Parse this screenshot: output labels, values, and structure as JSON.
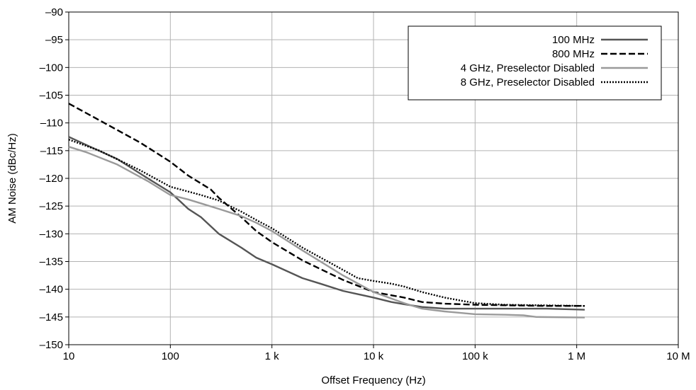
{
  "chart_data": {
    "type": "line",
    "title": "",
    "xlabel": "Offset Frequency (Hz)",
    "ylabel": "AM Noise (dBc/Hz)",
    "x_scale": "log",
    "xlim": [
      10,
      10000000
    ],
    "ylim": [
      -150,
      -90
    ],
    "grid": true,
    "legend_position": "top-right",
    "x_ticks": [
      {
        "value": 10,
        "label": "10"
      },
      {
        "value": 100,
        "label": "100"
      },
      {
        "value": 1000,
        "label": "1 k"
      },
      {
        "value": 10000,
        "label": "10 k"
      },
      {
        "value": 100000,
        "label": "100 k"
      },
      {
        "value": 1000000,
        "label": "1 M"
      },
      {
        "value": 10000000,
        "label": "10 M"
      }
    ],
    "y_ticks": [
      {
        "value": -90,
        "label": "–90"
      },
      {
        "value": -95,
        "label": "–95"
      },
      {
        "value": -100,
        "label": "–100"
      },
      {
        "value": -105,
        "label": "–105"
      },
      {
        "value": -110,
        "label": "–110"
      },
      {
        "value": -115,
        "label": "–115"
      },
      {
        "value": -120,
        "label": "–120"
      },
      {
        "value": -125,
        "label": "–125"
      },
      {
        "value": -130,
        "label": "–130"
      },
      {
        "value": -135,
        "label": "–135"
      },
      {
        "value": -140,
        "label": "–140"
      },
      {
        "value": -145,
        "label": "–145"
      },
      {
        "value": -150,
        "label": "–150"
      }
    ],
    "series": [
      {
        "name": "100 MHz",
        "color": "#555555",
        "dash": "solid",
        "points": [
          [
            10,
            -112.5
          ],
          [
            15,
            -114
          ],
          [
            30,
            -116.5
          ],
          [
            60,
            -120
          ],
          [
            100,
            -122.5
          ],
          [
            150,
            -125.5
          ],
          [
            200,
            -127
          ],
          [
            300,
            -130
          ],
          [
            500,
            -132.5
          ],
          [
            700,
            -134.3
          ],
          [
            1000,
            -135.5
          ],
          [
            2000,
            -138
          ],
          [
            3000,
            -139
          ],
          [
            5000,
            -140.3
          ],
          [
            10000,
            -141.5
          ],
          [
            15000,
            -142.3
          ],
          [
            20000,
            -142.7
          ],
          [
            30000,
            -143.2
          ],
          [
            50000,
            -143.5
          ],
          [
            100000,
            -143.5
          ],
          [
            200000,
            -143.5
          ],
          [
            500000,
            -143.5
          ],
          [
            1200000,
            -143.7
          ]
        ]
      },
      {
        "name": "800 MHz",
        "color": "#000000",
        "dash": "dashed",
        "points": [
          [
            10,
            -106.5
          ],
          [
            20,
            -109.5
          ],
          [
            50,
            -113.5
          ],
          [
            100,
            -117
          ],
          [
            150,
            -119.5
          ],
          [
            250,
            -122
          ],
          [
            300,
            -123.5
          ],
          [
            500,
            -127
          ],
          [
            700,
            -129.5
          ],
          [
            1000,
            -131.5
          ],
          [
            2000,
            -134.8
          ],
          [
            5000,
            -138.3
          ],
          [
            10000,
            -140.5
          ],
          [
            20000,
            -141.5
          ],
          [
            30000,
            -142.3
          ],
          [
            50000,
            -142.6
          ],
          [
            100000,
            -142.8
          ],
          [
            500000,
            -143
          ],
          [
            1200000,
            -143
          ]
        ]
      },
      {
        "name": "4 GHz, Preselector Disabled",
        "color": "#9a9a9a",
        "dash": "solid",
        "points": [
          [
            10,
            -114.3
          ],
          [
            15,
            -115.3
          ],
          [
            30,
            -117.5
          ],
          [
            60,
            -120.5
          ],
          [
            100,
            -123
          ],
          [
            150,
            -123.8
          ],
          [
            200,
            -124.5
          ],
          [
            300,
            -125.5
          ],
          [
            500,
            -126.8
          ],
          [
            700,
            -128
          ],
          [
            1000,
            -129.5
          ],
          [
            2000,
            -133
          ],
          [
            5000,
            -137.5
          ],
          [
            10000,
            -140.5
          ],
          [
            20000,
            -142.5
          ],
          [
            30000,
            -143.5
          ],
          [
            50000,
            -144
          ],
          [
            100000,
            -144.5
          ],
          [
            200000,
            -144.6
          ],
          [
            300000,
            -144.7
          ],
          [
            400000,
            -145
          ],
          [
            1200000,
            -145.1
          ]
        ]
      },
      {
        "name": "8 GHz, Preselector Disabled",
        "color": "#000000",
        "dash": "dotted",
        "points": [
          [
            10,
            -113
          ],
          [
            20,
            -115
          ],
          [
            50,
            -118.5
          ],
          [
            100,
            -121.5
          ],
          [
            200,
            -123
          ],
          [
            300,
            -124
          ],
          [
            500,
            -126
          ],
          [
            700,
            -127.5
          ],
          [
            1000,
            -129
          ],
          [
            2000,
            -132.5
          ],
          [
            5000,
            -136.5
          ],
          [
            7000,
            -138
          ],
          [
            10000,
            -138.5
          ],
          [
            15000,
            -139
          ],
          [
            20000,
            -139.5
          ],
          [
            30000,
            -140.5
          ],
          [
            50000,
            -141.5
          ],
          [
            70000,
            -142
          ],
          [
            100000,
            -142.5
          ],
          [
            200000,
            -142.8
          ],
          [
            1200000,
            -143
          ]
        ]
      }
    ]
  }
}
